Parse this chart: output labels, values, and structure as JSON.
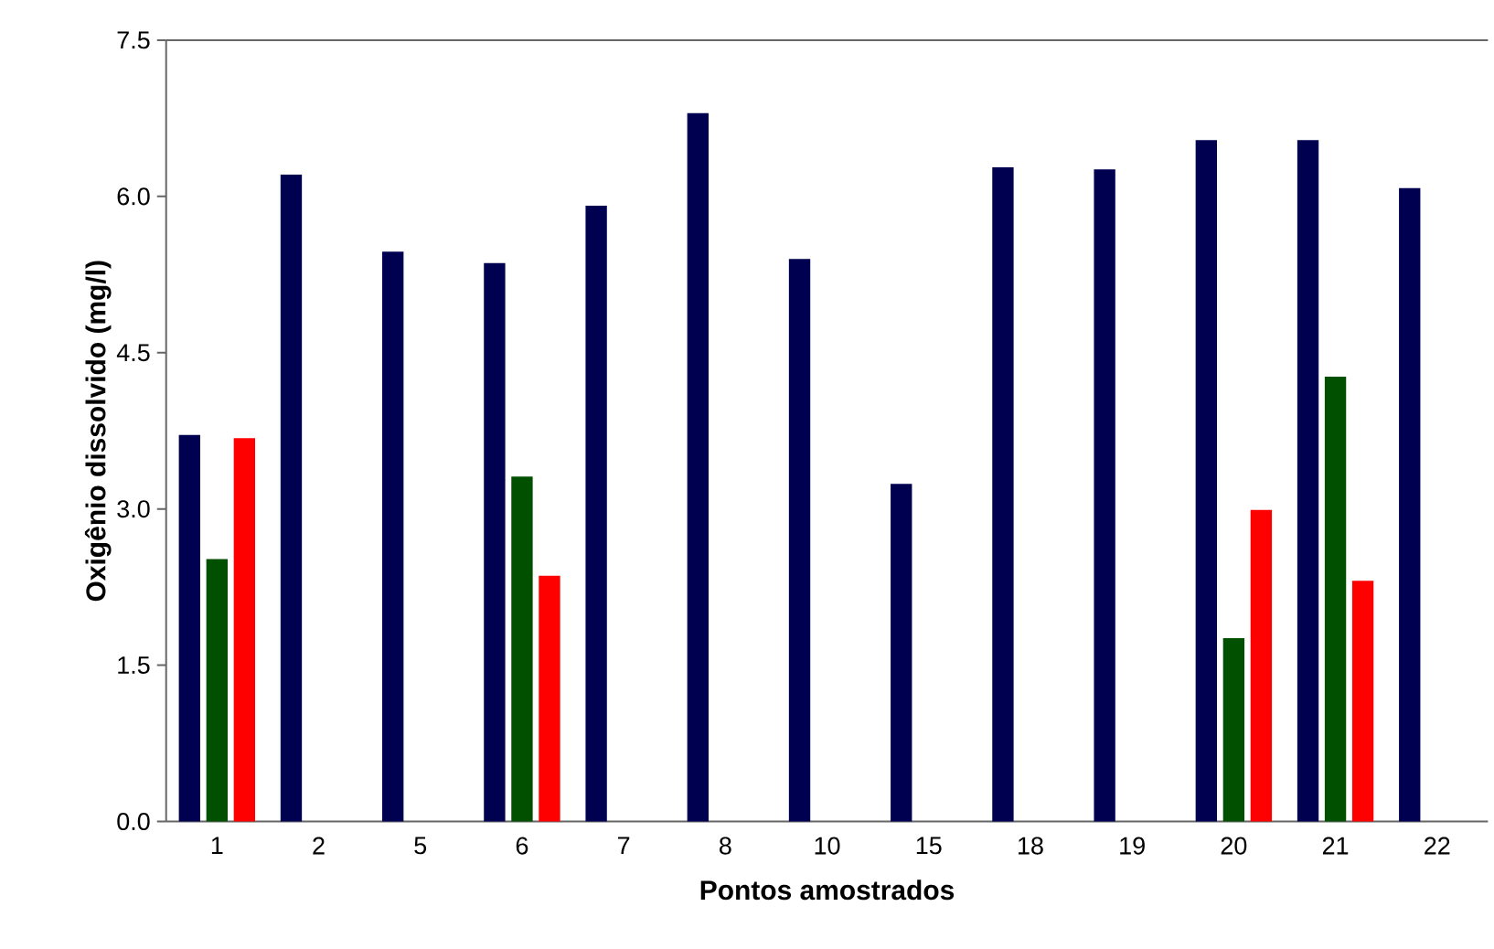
{
  "chart_data": {
    "type": "bar",
    "xlabel": "Pontos amostrados",
    "ylabel": "Oxigênio dissolvido (mg/l)",
    "categories": [
      "1",
      "2",
      "5",
      "6",
      "7",
      "8",
      "10",
      "15",
      "18",
      "19",
      "20",
      "21",
      "22"
    ],
    "series": [
      {
        "color": "#000050",
        "values": [
          3.71,
          6.21,
          5.47,
          5.36,
          5.91,
          6.8,
          5.4,
          3.24,
          6.28,
          6.26,
          6.54,
          6.54,
          6.08
        ]
      },
      {
        "color": "#005000",
        "values": [
          2.52,
          null,
          null,
          3.31,
          null,
          null,
          null,
          null,
          null,
          null,
          1.76,
          4.27,
          null
        ]
      },
      {
        "color": "#ff0000",
        "values": [
          3.68,
          null,
          null,
          2.36,
          null,
          null,
          null,
          null,
          null,
          null,
          2.99,
          2.31,
          null
        ]
      }
    ],
    "ylim": [
      0,
      7.5
    ],
    "yticks": [
      {
        "value": 0,
        "label": "0.0"
      },
      {
        "value": 1.5,
        "label": "1.5"
      },
      {
        "value": 3,
        "label": "3.0"
      },
      {
        "value": 4.5,
        "label": "4.5"
      },
      {
        "value": 6,
        "label": "6.0"
      },
      {
        "value": 7.5,
        "label": "7.5"
      }
    ],
    "grid": false
  }
}
